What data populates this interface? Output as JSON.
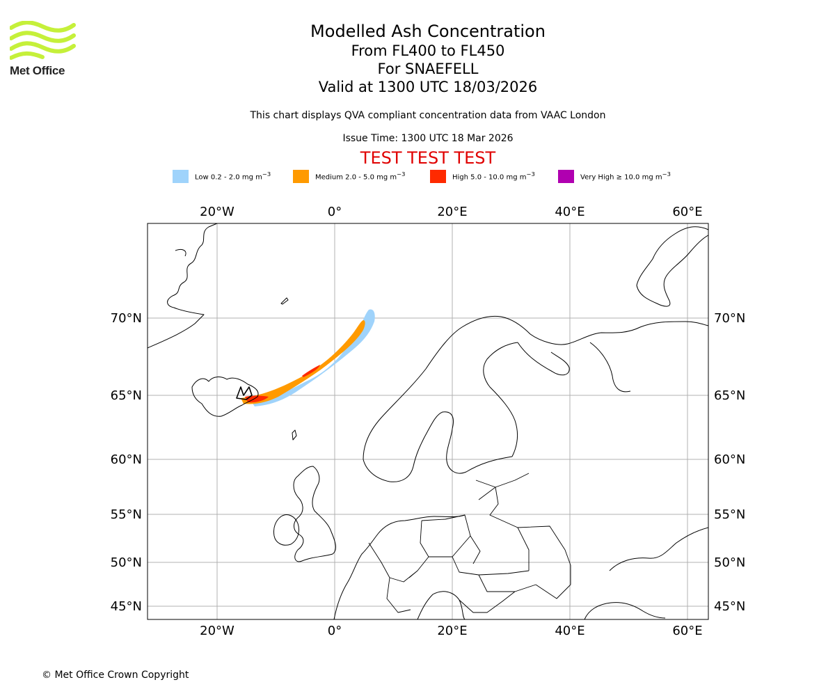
{
  "logo": {
    "name": "Met Office",
    "color": "#c5f03a"
  },
  "title": {
    "main": "Modelled Ash Concentration",
    "levels": "From FL400 to FL450",
    "volcano": "For SNAEFELL",
    "valid": "Valid at 1300 UTC 18/03/2026"
  },
  "note": "This chart displays QVA compliant concentration data from VAAC London",
  "issue_time": "Issue Time: 1300 UTC 18 Mar 2026",
  "test_banner": "TEST TEST TEST",
  "legend": [
    {
      "label": "Low 0.2 - 2.0 mg m",
      "sup": "−3",
      "color": "#9fd3fb"
    },
    {
      "label": "Medium 2.0 - 5.0 mg m",
      "sup": "−3",
      "color": "#ff9a00"
    },
    {
      "label": "High 5.0 - 10.0 mg m",
      "sup": "−3",
      "color": "#ff2a00"
    },
    {
      "label": "Very High ≥ 10.0 mg m",
      "sup": "−3",
      "color": "#b000b0"
    }
  ],
  "map": {
    "lon_labels": [
      "20°W",
      "0°",
      "20°E",
      "40°E",
      "60°E"
    ],
    "lon_values": [
      -20,
      0,
      20,
      40,
      60
    ],
    "lat_labels": [
      "70°N",
      "65°N",
      "60°N",
      "55°N",
      "50°N",
      "45°N"
    ],
    "lat_values": [
      70,
      65,
      60,
      55,
      50,
      45
    ]
  },
  "copyright": "© Met Office Crown Copyright"
}
